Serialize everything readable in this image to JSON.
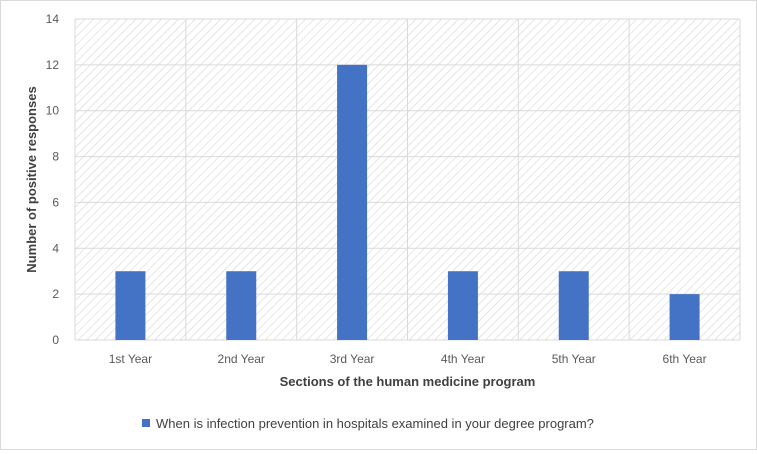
{
  "chart_data": {
    "type": "bar",
    "categories": [
      "1st Year",
      "2nd Year",
      "3rd Year",
      "4th Year",
      "5th Year",
      "6th Year"
    ],
    "series": [
      {
        "name": "When is infection prevention in hospitals examined in your degree program?",
        "values": [
          3,
          3,
          12,
          3,
          3,
          2
        ],
        "color": "#4472c4"
      }
    ],
    "xlabel": "Sections of the human medicine program",
    "ylabel": "Number of positive responses",
    "ylim": [
      0,
      14
    ],
    "yticks": [
      0,
      2,
      4,
      6,
      8,
      10,
      12,
      14
    ],
    "grid": true,
    "plot_background": "hatched",
    "legend_position": "bottom"
  }
}
